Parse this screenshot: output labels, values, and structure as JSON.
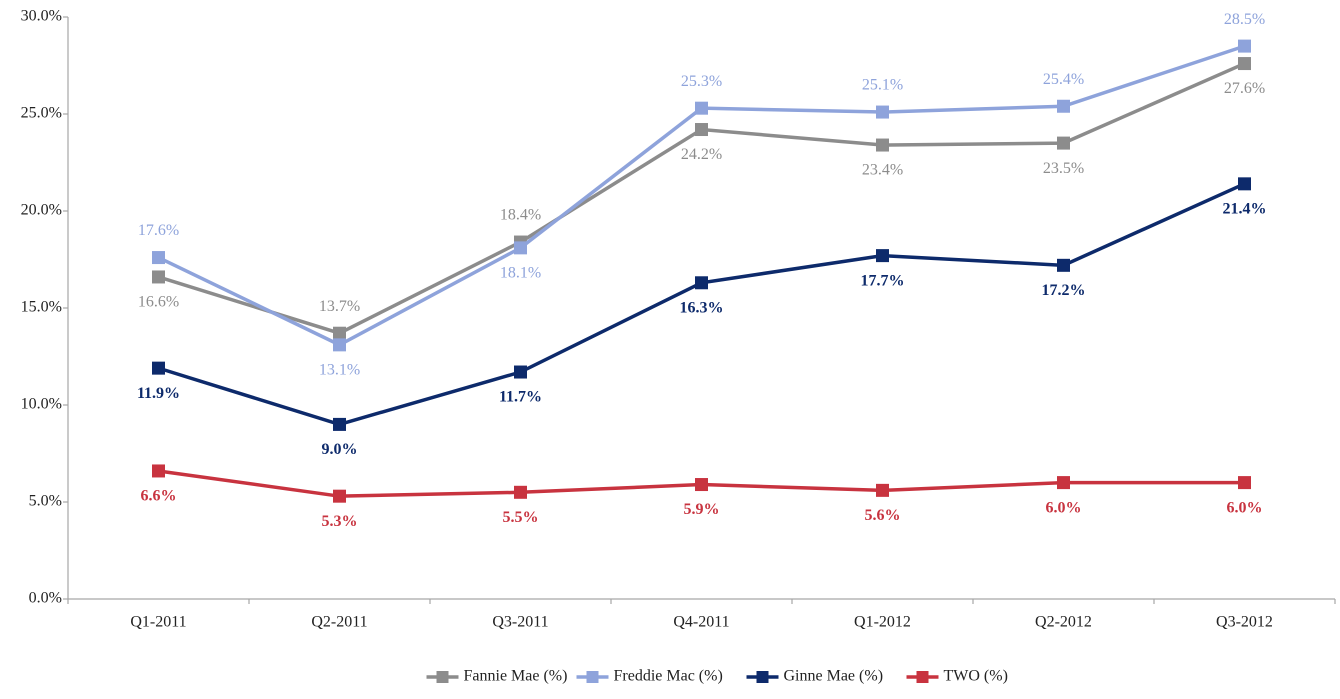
{
  "chart_data": {
    "type": "line",
    "categories": [
      "Q1-2011",
      "Q2-2011",
      "Q3-2011",
      "Q4-2011",
      "Q1-2012",
      "Q2-2012",
      "Q3-2012"
    ],
    "series": [
      {
        "name": "Fannie Mae (%)",
        "color": "#8c8c8c",
        "values": [
          16.6,
          13.7,
          18.4,
          24.2,
          23.4,
          23.5,
          27.6
        ],
        "value_labels": [
          "16.6%",
          "13.7%",
          "18.4%",
          "24.2%",
          "23.4%",
          "23.5%",
          "27.6%"
        ]
      },
      {
        "name": "Freddie Mac (%)",
        "color": "#8ea3db",
        "values": [
          17.6,
          13.1,
          18.1,
          25.3,
          25.1,
          25.4,
          28.5
        ],
        "value_labels": [
          "17.6%",
          "13.1%",
          "18.1%",
          "25.3%",
          "25.1%",
          "25.4%",
          "28.5%"
        ]
      },
      {
        "name": "Ginne Mae (%)",
        "color": "#0d2a6b",
        "values": [
          11.9,
          9.0,
          11.7,
          16.3,
          17.7,
          17.2,
          21.4
        ],
        "value_labels": [
          "11.9%",
          "9.0%",
          "11.7%",
          "16.3%",
          "17.7%",
          "17.2%",
          "21.4%"
        ]
      },
      {
        "name": "TWO (%)",
        "color": "#c8333f",
        "values": [
          6.6,
          5.3,
          5.5,
          5.9,
          5.6,
          6.0,
          6.0
        ],
        "value_labels": [
          "6.6%",
          "5.3%",
          "5.5%",
          "5.9%",
          "5.6%",
          "6.0%",
          "6.0%"
        ]
      }
    ],
    "ylim": [
      0,
      30
    ],
    "yticks": [
      {
        "value": 0,
        "label": "0.0%"
      },
      {
        "value": 5,
        "label": "5.0%"
      },
      {
        "value": 10,
        "label": "10.0%"
      },
      {
        "value": 15,
        "label": "15.0%"
      },
      {
        "value": 20,
        "label": "20.0%"
      },
      {
        "value": 25,
        "label": "25.0%"
      },
      {
        "value": 30,
        "label": "30.0%"
      }
    ],
    "legend": "bottom"
  }
}
